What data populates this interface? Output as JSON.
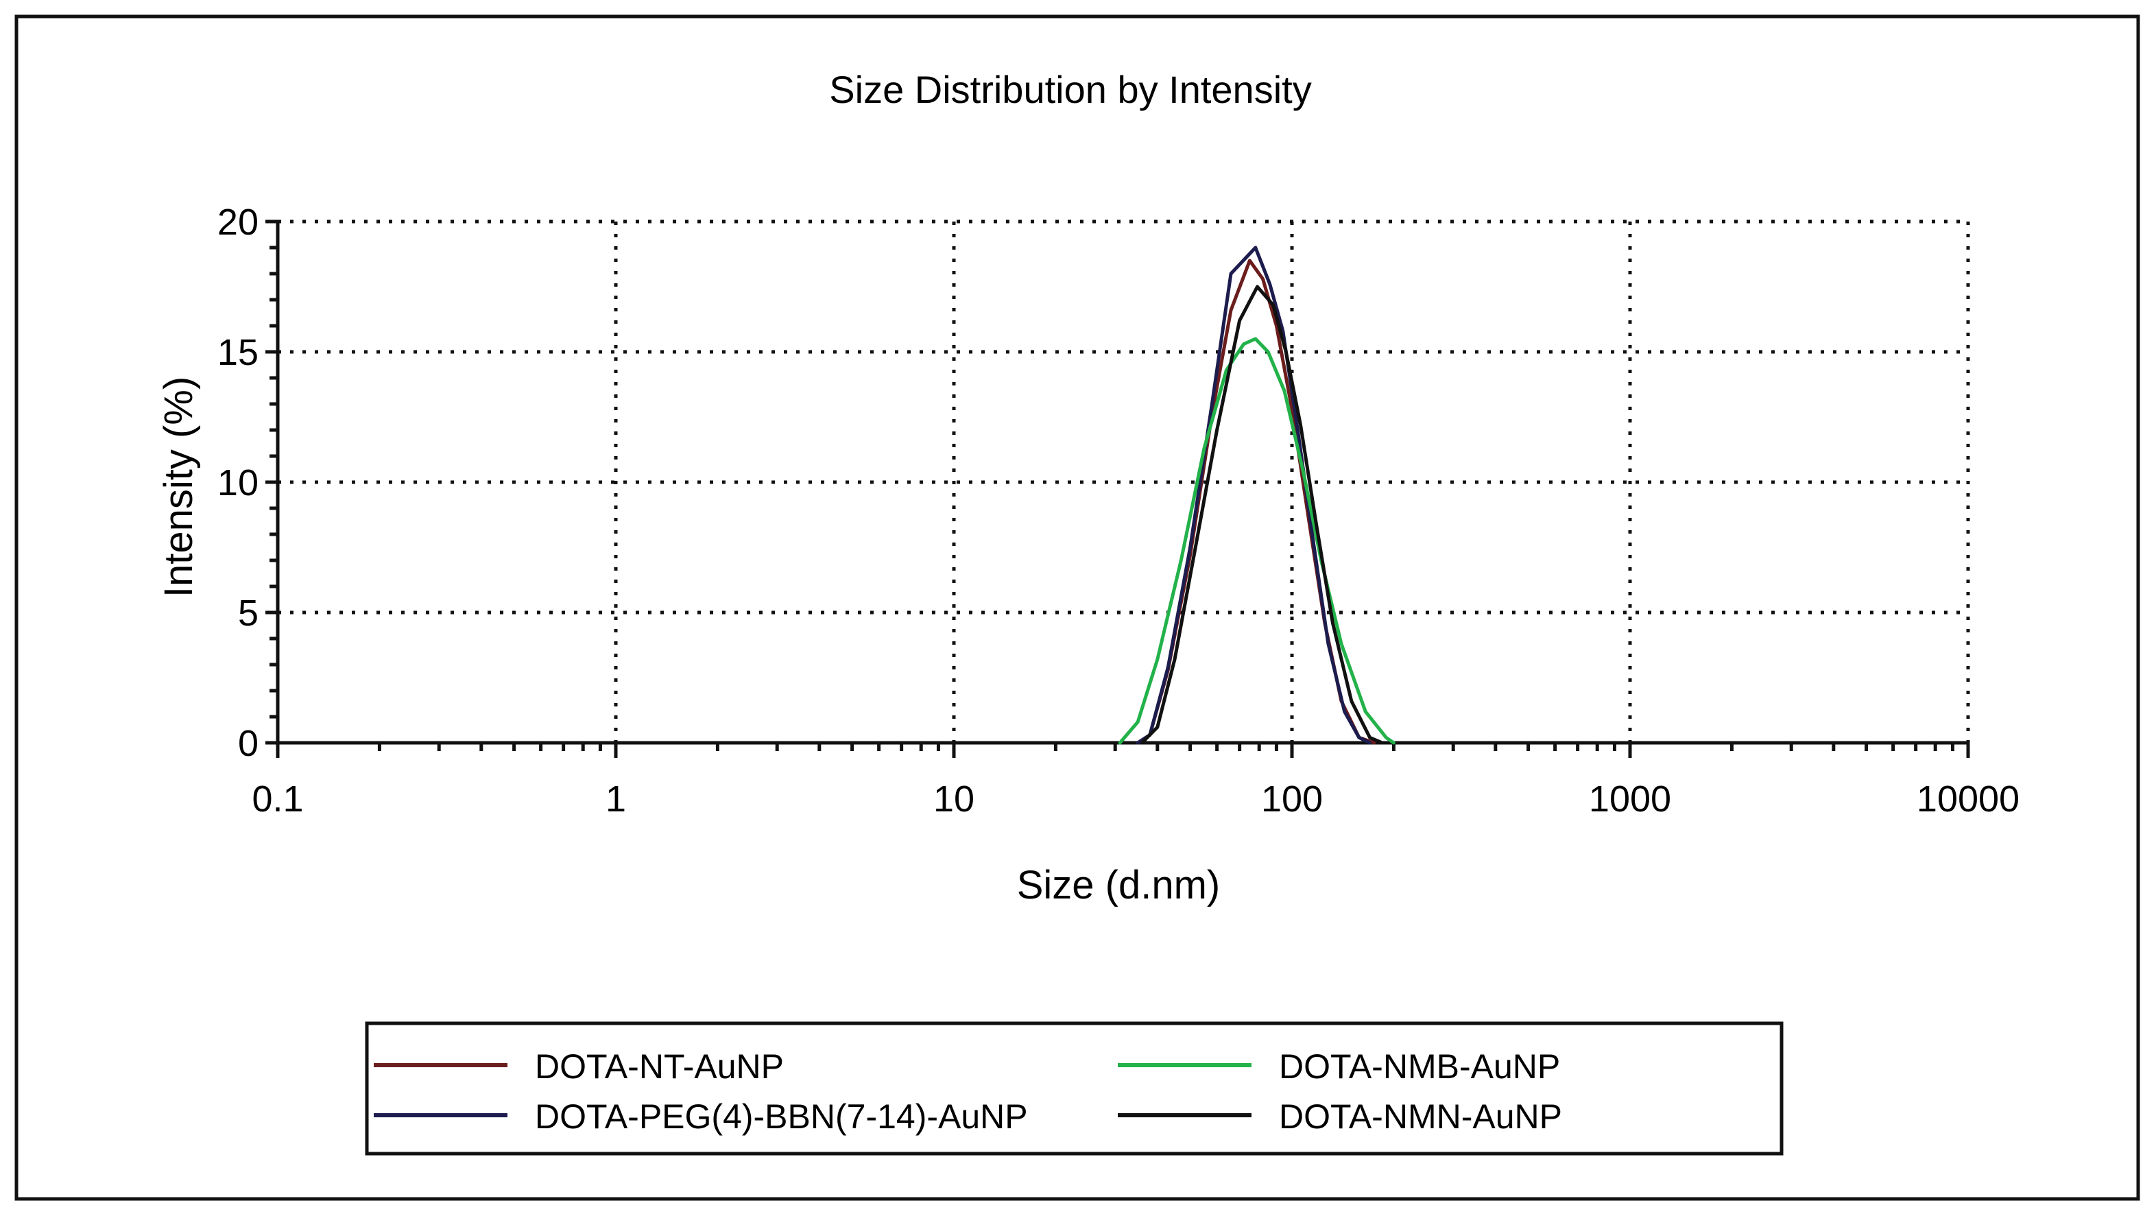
{
  "chart_data": {
    "type": "line",
    "title": "Size Distribution by Intensity",
    "xlabel": "Size (d.nm)",
    "ylabel": "Intensity (%)",
    "xscale": "log",
    "xlim": [
      0.1,
      10000
    ],
    "ylim": [
      0,
      20
    ],
    "x_ticks": [
      0.1,
      1,
      10,
      100,
      1000,
      10000
    ],
    "x_tick_labels": [
      "0.1",
      "1",
      "10",
      "100",
      "1000",
      "10000"
    ],
    "y_ticks": [
      0,
      5,
      10,
      15,
      20
    ],
    "y_tick_labels": [
      "0",
      "5",
      "10",
      "15",
      "20"
    ],
    "grid": true,
    "legend_placement": "bottom",
    "series": [
      {
        "name": "DOTA-NT-AuNP",
        "color": "#6b1d1d",
        "x": [
          35,
          38,
          43,
          50,
          58,
          66,
          75,
          82,
          90,
          100,
          112,
          125,
          140,
          158,
          175
        ],
        "y": [
          0,
          0.3,
          2.8,
          7.2,
          12.6,
          16.6,
          18.5,
          17.8,
          16.0,
          12.8,
          8.6,
          4.6,
          1.6,
          0.2,
          0
        ]
      },
      {
        "name": "DOTA-PEG(4)-BBN(7-14)-AuNP",
        "color": "#1c1c4e",
        "x": [
          35,
          38,
          43,
          50,
          58,
          66,
          78,
          86,
          94,
          104,
          116,
          128,
          143,
          158,
          170
        ],
        "y": [
          0,
          0.3,
          2.9,
          7.5,
          13.0,
          18.0,
          19.0,
          17.6,
          15.8,
          12.0,
          7.6,
          3.8,
          1.2,
          0.2,
          0
        ]
      },
      {
        "name": "DOTA-NMB-AuNP",
        "color": "#23b24a",
        "x": [
          31,
          35,
          40,
          47,
          55,
          64,
          72,
          78,
          85,
          95,
          108,
          122,
          140,
          165,
          190,
          200
        ],
        "y": [
          0,
          0.8,
          3.2,
          7.0,
          11.3,
          14.3,
          15.3,
          15.5,
          15.0,
          13.5,
          10.4,
          7.0,
          3.8,
          1.2,
          0.2,
          0
        ]
      },
      {
        "name": "DOTA-NMN-AuNP",
        "color": "#111111",
        "x": [
          36,
          40,
          45,
          52,
          60,
          70,
          79,
          88,
          96,
          106,
          118,
          132,
          150,
          170,
          185
        ],
        "y": [
          0,
          0.6,
          3.2,
          7.6,
          12.0,
          16.2,
          17.5,
          16.8,
          15.0,
          12.2,
          8.4,
          4.6,
          1.6,
          0.2,
          0
        ]
      }
    ]
  }
}
